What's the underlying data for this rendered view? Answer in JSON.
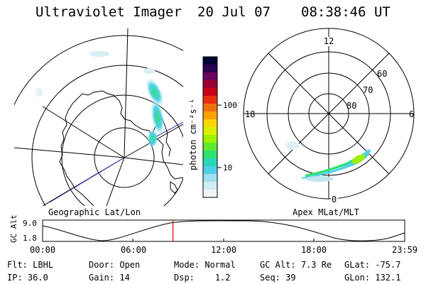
{
  "header": {
    "instrument": "Ultraviolet Imager",
    "date": "20 Jul 07",
    "time": "08:38:46 UT"
  },
  "left_panel": {
    "label": "Geographic Lat/Lon"
  },
  "right_panel": {
    "label": "Apex MLat/MLT",
    "mlt_labels": [
      "12",
      "18",
      "6",
      "0"
    ],
    "mlat_labels": [
      "60",
      "70",
      "80"
    ]
  },
  "colorbar": {
    "unit_label": "photon cm⁻²s⁻¹",
    "tick_labels": [
      "100",
      "10"
    ],
    "colors": [
      "#000033",
      "#2a0050",
      "#6a0060",
      "#9a0030",
      "#c80018",
      "#e83010",
      "#f07010",
      "#f8a000",
      "#f8d800",
      "#d8f000",
      "#a0f000",
      "#60e830",
      "#30e070",
      "#28d8b8",
      "#50d0e8",
      "#a0e0f0",
      "#d0ecf4",
      "#eef6f8"
    ]
  },
  "timeline": {
    "y_axis_label": "GC Alt",
    "y_ticks": [
      "9.0",
      "1.8"
    ],
    "x_ticks": [
      "00:00",
      "06:00",
      "12:00",
      "18:00",
      "23:59"
    ],
    "current_time_fraction": 0.36
  },
  "status": {
    "row1": [
      {
        "key": "Flt:",
        "value": "LBHL"
      },
      {
        "key": "Door:",
        "value": "Open"
      },
      {
        "key": "Mode:",
        "value": "Normal"
      },
      {
        "key": "GC Alt:",
        "value": "7.3 Re"
      },
      {
        "key": "GLat:",
        "value": "-75.7"
      }
    ],
    "row2": [
      {
        "key": "IP:",
        "value": "36.0"
      },
      {
        "key": "Gain:",
        "value": "14"
      },
      {
        "key": "Dsp:",
        "value": "1.2"
      },
      {
        "key": "Seq:",
        "value": "39"
      },
      {
        "key": "GLon:",
        "value": "132.1"
      }
    ]
  }
}
